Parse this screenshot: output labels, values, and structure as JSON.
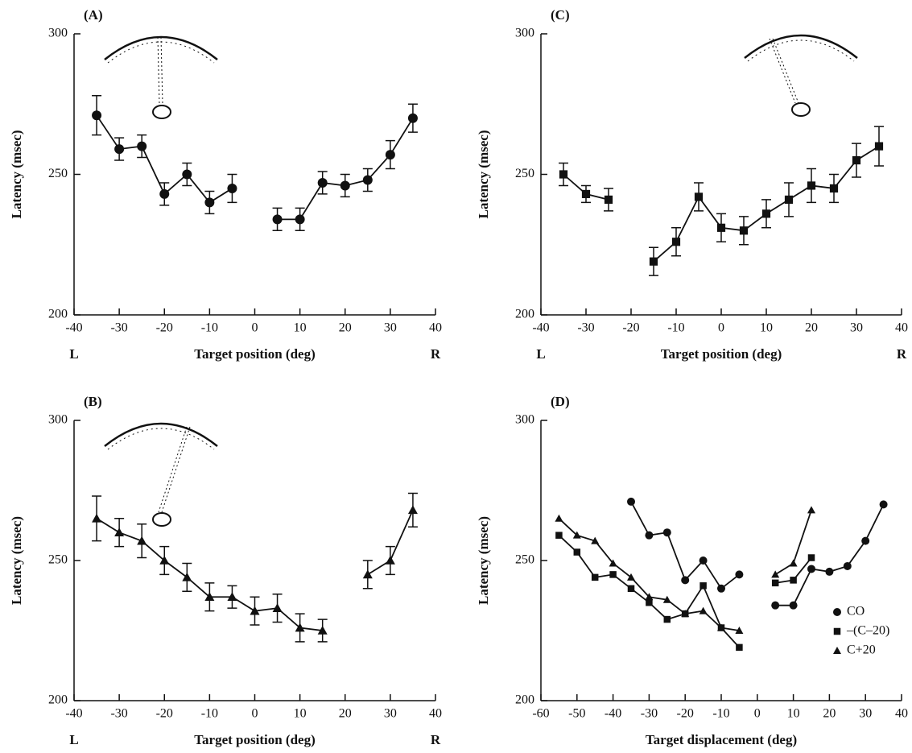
{
  "chart_data": [
    {
      "type": "line",
      "panel_label": "(A)",
      "xlabel": "Target position (deg)",
      "ylabel": "Latency (msec)",
      "left_label": "L",
      "right_label": "R",
      "xlim": [
        -40,
        40
      ],
      "xticks": [
        -40,
        -30,
        -20,
        -10,
        0,
        10,
        20,
        30,
        40
      ],
      "ylim": [
        200,
        300
      ],
      "yticks": [
        200,
        250,
        300
      ],
      "series": [
        {
          "marker": "circle",
          "color": "#111111",
          "x": [
            -35,
            -30,
            -25,
            -20,
            -15,
            -10,
            -5,
            0,
            5,
            10,
            15,
            20,
            25,
            30,
            35
          ],
          "values": [
            271,
            259,
            260,
            243,
            250,
            240,
            245,
            null,
            234,
            234,
            247,
            246,
            248,
            257,
            270
          ],
          "errors": [
            7,
            4,
            4,
            4,
            4,
            4,
            5,
            null,
            4,
            4,
            4,
            4,
            4,
            5,
            5
          ]
        }
      ]
    },
    {
      "type": "line",
      "panel_label": "(B)",
      "xlabel": "Target position (deg)",
      "ylabel": "Latency (msec)",
      "left_label": "L",
      "right_label": "R",
      "xlim": [
        -40,
        40
      ],
      "xticks": [
        -40,
        -30,
        -20,
        -10,
        0,
        10,
        20,
        30,
        40
      ],
      "ylim": [
        200,
        300
      ],
      "yticks": [
        200,
        250,
        300
      ],
      "series": [
        {
          "marker": "triangle",
          "color": "#111111",
          "x": [
            -35,
            -30,
            -25,
            -20,
            -15,
            -10,
            -5,
            0,
            5,
            10,
            15,
            20,
            25,
            30,
            35
          ],
          "values": [
            265,
            260,
            257,
            250,
            244,
            237,
            237,
            232,
            233,
            226,
            225,
            null,
            245,
            250,
            268
          ],
          "errors": [
            8,
            5,
            6,
            5,
            5,
            5,
            4,
            5,
            5,
            5,
            4,
            null,
            5,
            5,
            6
          ]
        }
      ]
    },
    {
      "type": "line",
      "panel_label": "(C)",
      "xlabel": "Target position (deg)",
      "ylabel": "Latency (msec)",
      "left_label": "L",
      "right_label": "R",
      "xlim": [
        -40,
        40
      ],
      "xticks": [
        -40,
        -30,
        -20,
        -10,
        0,
        10,
        20,
        30,
        40
      ],
      "ylim": [
        200,
        300
      ],
      "yticks": [
        200,
        250,
        300
      ],
      "series": [
        {
          "marker": "square",
          "color": "#111111",
          "x": [
            -35,
            -30,
            -25,
            -20,
            -15,
            -10,
            -5,
            0,
            5,
            10,
            15,
            20,
            25,
            30,
            35
          ],
          "values": [
            250,
            243,
            241,
            null,
            219,
            226,
            242,
            231,
            230,
            236,
            241,
            246,
            245,
            255,
            260
          ],
          "errors": [
            4,
            3,
            4,
            null,
            5,
            5,
            5,
            5,
            5,
            5,
            6,
            6,
            5,
            6,
            7
          ]
        }
      ]
    },
    {
      "type": "line",
      "panel_label": "(D)",
      "xlabel": "Target displacement (deg)",
      "ylabel": "Latency (msec)",
      "xlim": [
        -60,
        40
      ],
      "xticks": [
        -60,
        -50,
        -40,
        -30,
        -20,
        -10,
        0,
        10,
        20,
        30,
        40
      ],
      "ylim": [
        200,
        300
      ],
      "yticks": [
        200,
        250,
        300
      ],
      "legend": "lower right",
      "series": [
        {
          "name": "CO",
          "marker": "circle",
          "color": "#111111",
          "x": [
            -35,
            -30,
            -25,
            -20,
            -15,
            -10,
            -5,
            0,
            5,
            10,
            15,
            20,
            25,
            30,
            35
          ],
          "values": [
            271,
            259,
            260,
            243,
            250,
            240,
            245,
            null,
            234,
            234,
            247,
            246,
            248,
            257,
            270
          ]
        },
        {
          "name": "–(C–20)",
          "marker": "square",
          "color": "#111111",
          "x": [
            -55,
            -50,
            -45,
            -40,
            -35,
            -30,
            -25,
            -20,
            -15,
            -10,
            -5,
            0,
            5,
            10,
            15
          ],
          "values": [
            259,
            253,
            244,
            245,
            240,
            235,
            229,
            231,
            241,
            226,
            219,
            null,
            242,
            243,
            251
          ]
        },
        {
          "name": "C+20",
          "marker": "triangle",
          "color": "#111111",
          "x": [
            -55,
            -50,
            -45,
            -40,
            -35,
            -30,
            -25,
            -20,
            -15,
            -10,
            -5,
            0,
            5,
            10,
            15
          ],
          "values": [
            265,
            259,
            257,
            249,
            244,
            237,
            236,
            231,
            232,
            226,
            225,
            null,
            245,
            249,
            268
          ]
        }
      ]
    }
  ]
}
